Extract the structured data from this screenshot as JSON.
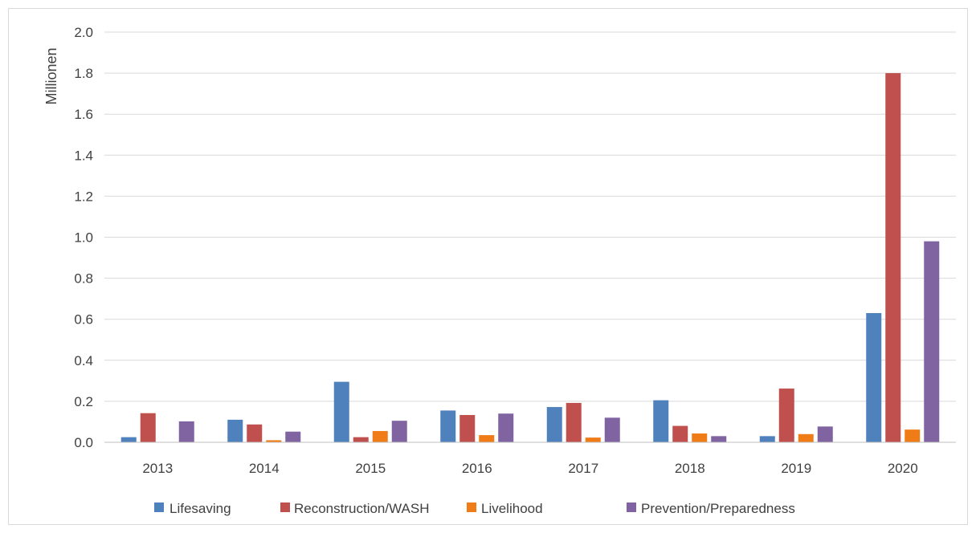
{
  "chart_data": {
    "type": "bar",
    "title": "",
    "xlabel": "",
    "ylabel": "Millionen",
    "ylim": [
      0,
      2.0
    ],
    "yticks": [
      "0.0",
      "0.2",
      "0.4",
      "0.6",
      "0.8",
      "1.0",
      "1.2",
      "1.4",
      "1.6",
      "1.8",
      "2.0"
    ],
    "categories": [
      "2013",
      "2014",
      "2015",
      "2016",
      "2017",
      "2018",
      "2019",
      "2020"
    ],
    "grid": true,
    "legend_position": "bottom",
    "series": [
      {
        "name": "Lifesaving",
        "color": "#4f81bd",
        "values": [
          0.025,
          0.11,
          0.295,
          0.155,
          0.172,
          0.205,
          0.03,
          0.63
        ]
      },
      {
        "name": "Reconstruction/WASH",
        "color": "#c0504d",
        "values": [
          0.142,
          0.087,
          0.025,
          0.133,
          0.192,
          0.08,
          0.262,
          1.8
        ]
      },
      {
        "name": "Livelihood",
        "color": "#f07c18",
        "values": [
          0.0,
          0.01,
          0.055,
          0.035,
          0.023,
          0.043,
          0.04,
          0.062
        ]
      },
      {
        "name": "Prevention/Preparedness",
        "color": "#8064a2",
        "values": [
          0.102,
          0.052,
          0.105,
          0.14,
          0.12,
          0.03,
          0.077,
          0.98
        ]
      }
    ]
  }
}
